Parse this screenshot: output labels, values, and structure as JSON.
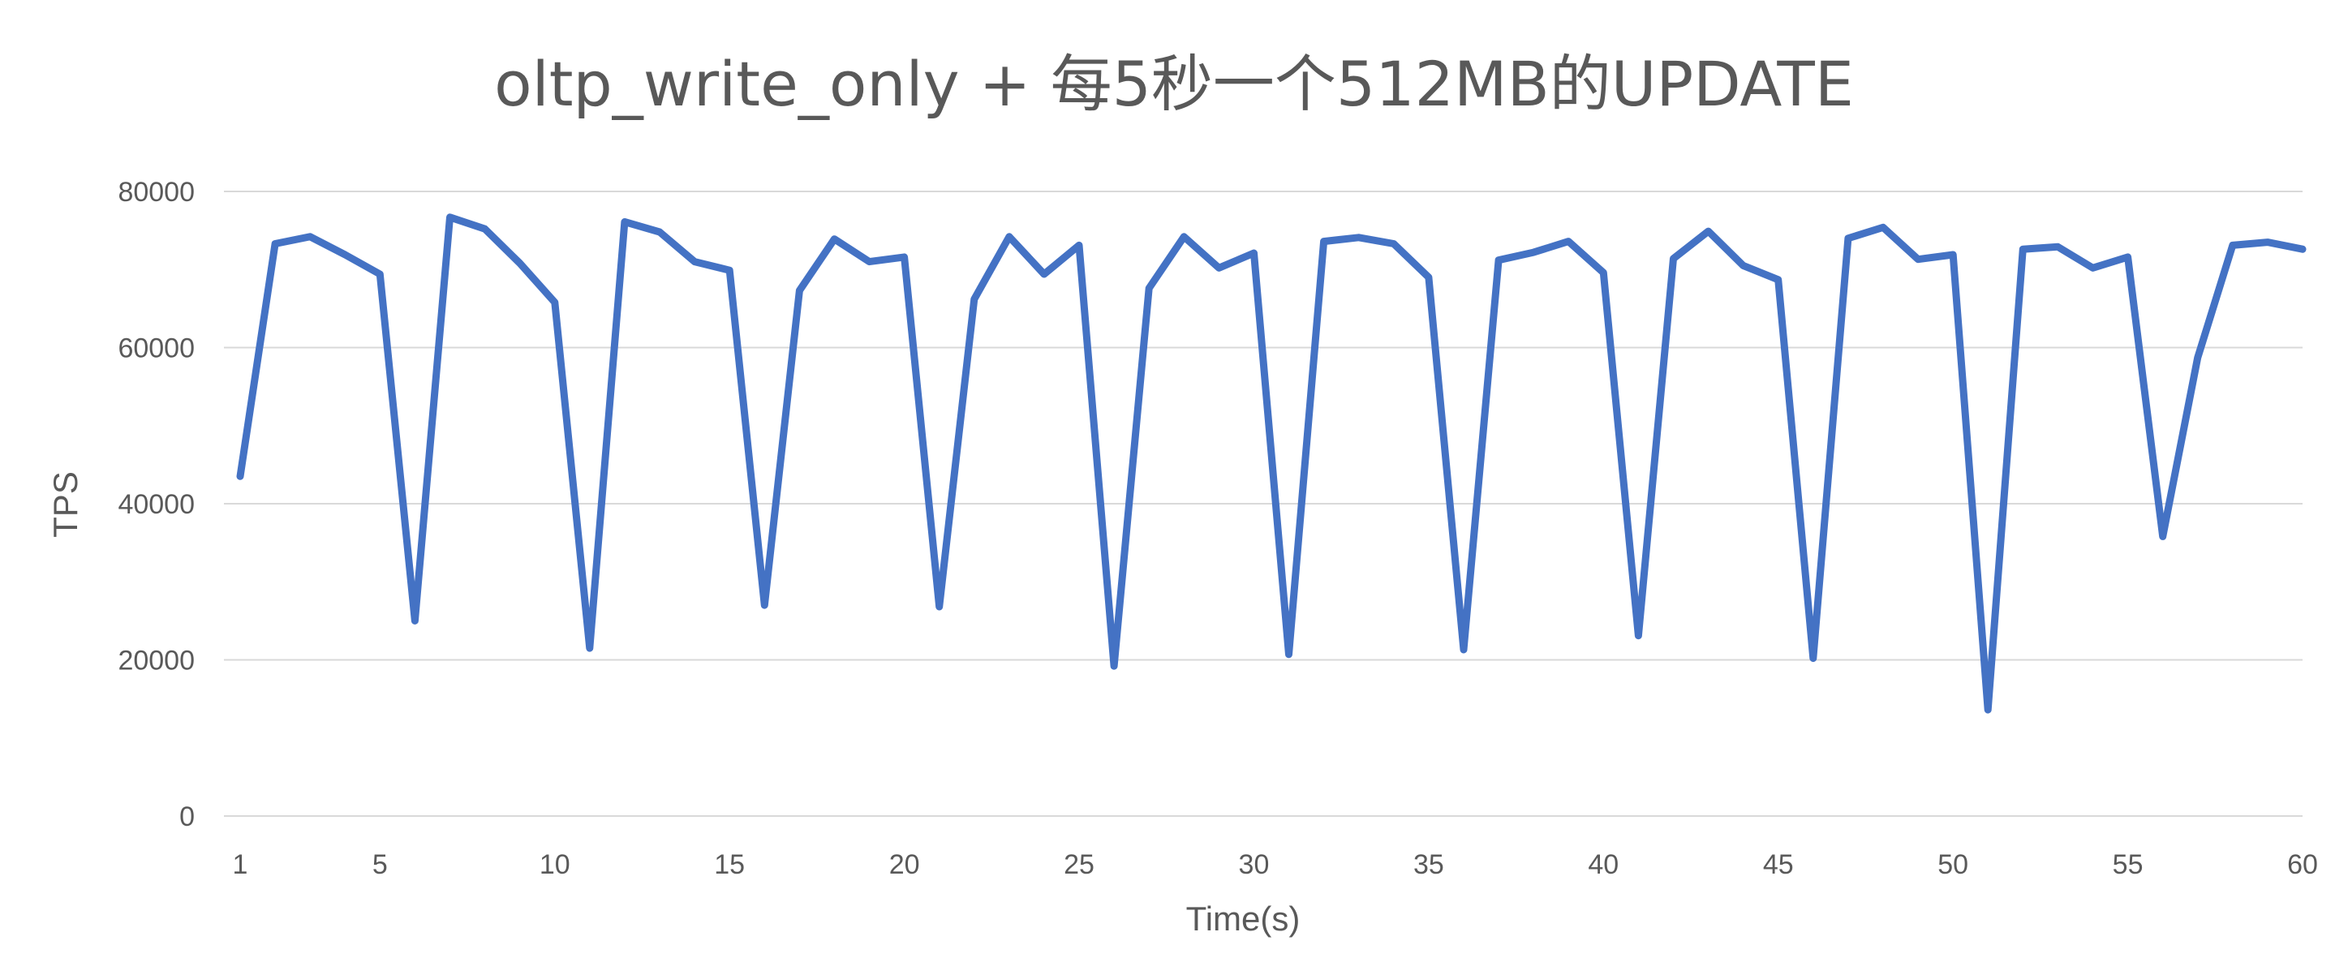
{
  "chart_data": {
    "type": "line",
    "title": "oltp_write_only + 每5秒一个512MB的UPDATE",
    "xlabel": "Time(s)",
    "ylabel": "TPS",
    "ylim": [
      0,
      80000
    ],
    "yticks": [
      0,
      20000,
      40000,
      60000,
      80000
    ],
    "xlim": [
      1,
      60
    ],
    "xticks": [
      1,
      5,
      10,
      15,
      20,
      25,
      30,
      35,
      40,
      45,
      50,
      55,
      60
    ],
    "grid": true,
    "legend": "none",
    "color": "#4472C4",
    "x": [
      1,
      2,
      3,
      4,
      5,
      6,
      7,
      8,
      9,
      10,
      11,
      12,
      13,
      14,
      15,
      16,
      17,
      18,
      19,
      20,
      21,
      22,
      23,
      24,
      25,
      26,
      27,
      28,
      29,
      30,
      31,
      32,
      33,
      34,
      35,
      36,
      37,
      38,
      39,
      40,
      41,
      42,
      43,
      44,
      45,
      46,
      47,
      48,
      49,
      50,
      51,
      52,
      53,
      54,
      55,
      56,
      57,
      58,
      59,
      60
    ],
    "series": [
      {
        "values": [
          43500,
          73300,
          74200,
          71900,
          69400,
          25000,
          76700,
          75200,
          70800,
          65800,
          21500,
          76100,
          74800,
          71000,
          69900,
          27000,
          67300,
          73900,
          71000,
          71600,
          26800,
          66200,
          74200,
          69400,
          73100,
          19200,
          67600,
          74200,
          70200,
          72100,
          20700,
          73600,
          74100,
          73300,
          69000,
          21300,
          71200,
          72200,
          73600,
          69600,
          23100,
          71400,
          74900,
          70500,
          68700,
          20200,
          74000,
          75400,
          71300,
          71900,
          13600,
          72600,
          72900,
          70200,
          71600,
          35800,
          58700,
          73100,
          73500,
          72600
        ]
      }
    ]
  }
}
